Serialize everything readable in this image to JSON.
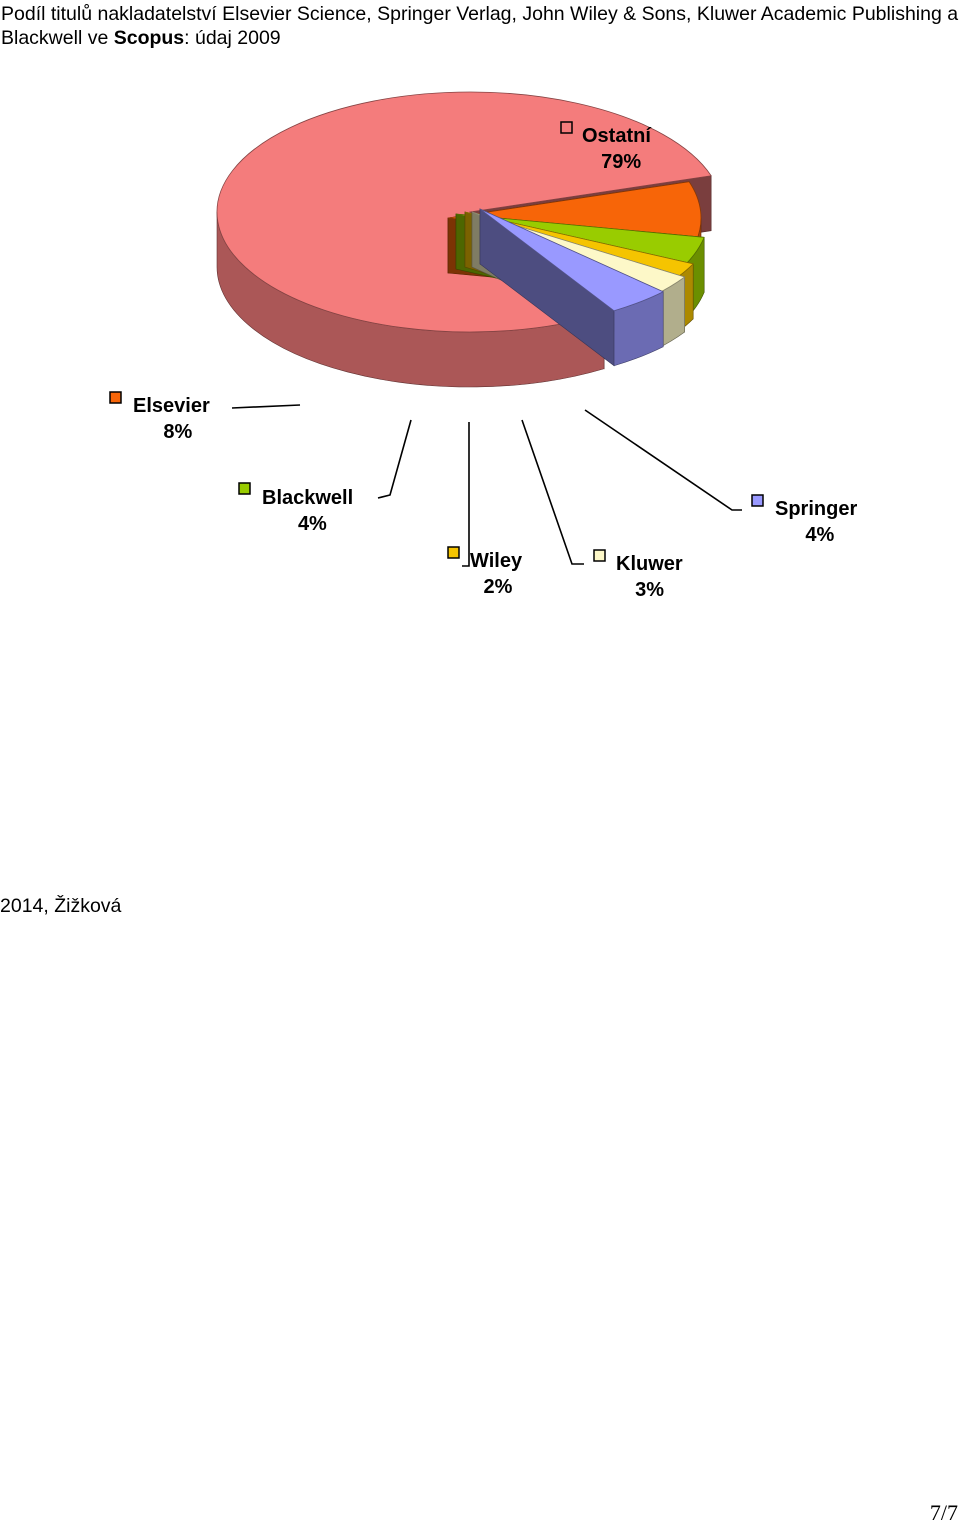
{
  "document": {
    "title_part1": "Podíl titulů nakladatelství Elsevier Science, Springer Verlag, John Wiley & Sons, Kluwer Academic Publishing a Blackwell ve ",
    "title_bold": "Scopus",
    "title_part2": ": údaj 2009",
    "footer": "2014, Žižková",
    "page_number": "7/7"
  },
  "chart_data": {
    "type": "pie",
    "three_d": true,
    "title": "",
    "legend": "none (labels beside slices)",
    "slices": [
      {
        "label": "Ostatní",
        "value": 79,
        "value_label": "79%",
        "color": "#F47C7C"
      },
      {
        "label": "Elsevier",
        "value": 8,
        "value_label": "8%",
        "color": "#F76508"
      },
      {
        "label": "Blackwell",
        "value": 4,
        "value_label": "4%",
        "color": "#99CC00"
      },
      {
        "label": "Wiley",
        "value": 2,
        "value_label": "2%",
        "color": "#F5C400"
      },
      {
        "label": "Kluwer",
        "value": 3,
        "value_label": "3%",
        "color": "#FDF8C8"
      },
      {
        "label": "Springer",
        "value": 4,
        "value_label": "4%",
        "color": "#9999FF"
      }
    ]
  }
}
